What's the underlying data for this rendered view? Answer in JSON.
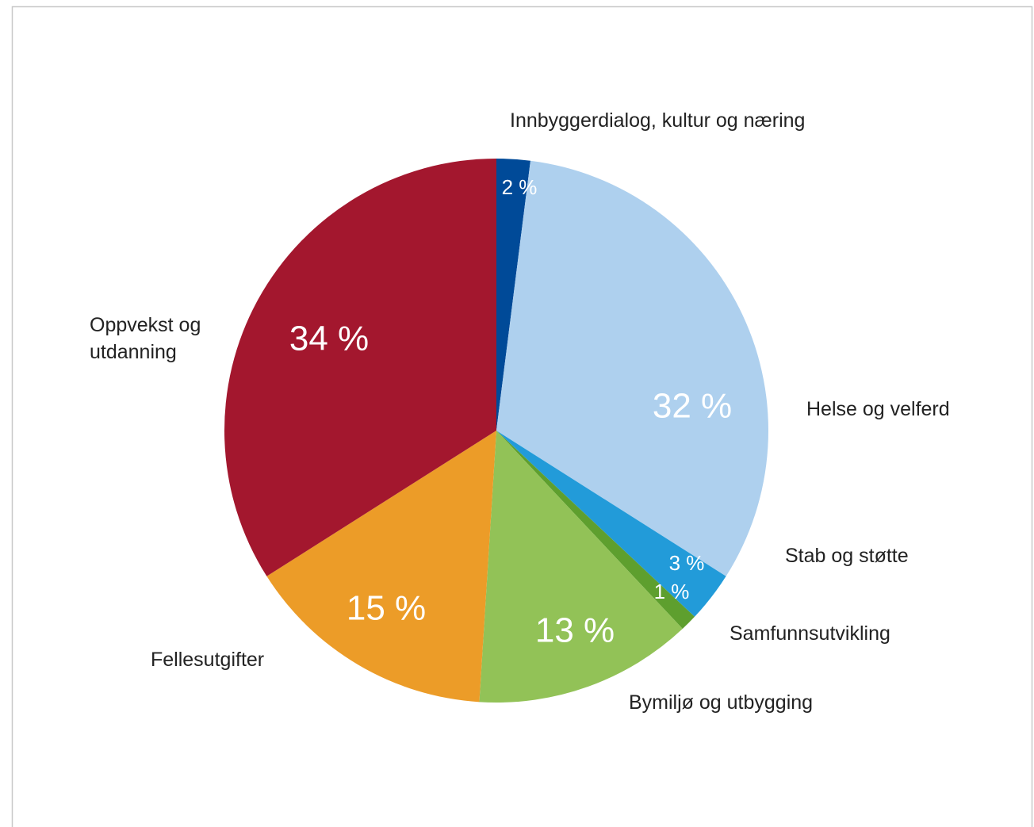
{
  "chart_data": {
    "type": "pie",
    "categories": [
      "Innbyggerdialog, kultur og næring",
      "Helse og velferd",
      "Stab og støtte",
      "Samfunnsutvikling",
      "Bymiljø og utbygging",
      "Fellesutgifter",
      "Oppvekst og utdanning"
    ],
    "values": [
      2,
      32,
      3,
      1,
      13,
      15,
      34
    ],
    "value_labels": [
      "2 %",
      "32 %",
      "3 %",
      "1 %",
      "13 %",
      "15 %",
      "34 %"
    ],
    "colors": [
      "#004a98",
      "#aed0ee",
      "#229bd9",
      "#5e9f2e",
      "#92c257",
      "#ec9c28",
      "#a3172e"
    ]
  }
}
